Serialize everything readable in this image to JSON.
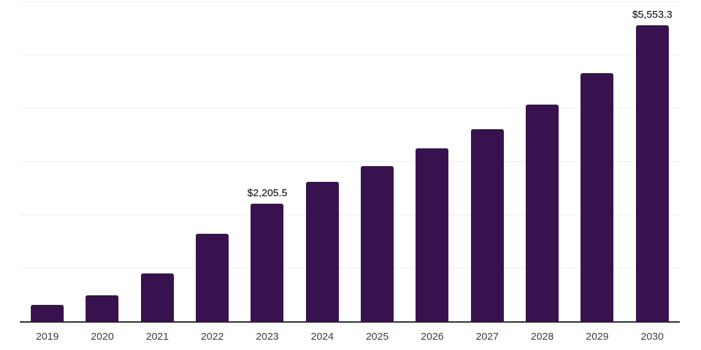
{
  "page": {
    "background_color": "#ffffff"
  },
  "chart_data": {
    "type": "bar",
    "title": "",
    "xlabel": "",
    "ylabel": "",
    "categories": [
      "2019",
      "2020",
      "2021",
      "2022",
      "2023",
      "2024",
      "2025",
      "2026",
      "2027",
      "2028",
      "2029",
      "2030"
    ],
    "values": [
      310,
      490,
      895,
      1640,
      2205.5,
      2610,
      2910,
      3245,
      3600,
      4065,
      4660,
      5553.3
    ],
    "data_labels": [
      "",
      "",
      "",
      "",
      "$2,205.5",
      "",
      "",
      "",
      "",
      "",
      "",
      "$5,553.3"
    ],
    "ylim": [
      0,
      6000
    ],
    "gridline_step": 1000,
    "grid_visible": true,
    "y_tick_labels_visible": false,
    "legend_position": "none",
    "colors": {
      "bar": "#38124e",
      "axis_line": "#262626",
      "gridline": "#ededed",
      "tick_label": "#3d3d3d",
      "data_label": "#000000",
      "background": "#ffffff"
    }
  }
}
